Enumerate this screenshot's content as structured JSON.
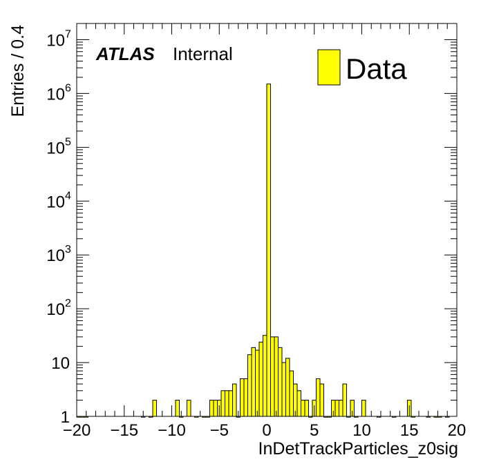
{
  "chart_data": {
    "type": "bar",
    "title": "",
    "xlabel": "InDetTrackParticles_z0sig",
    "ylabel": "Entries / 0.4",
    "xlim": [
      -20,
      20
    ],
    "ylim": [
      1,
      20000000
    ],
    "log_y": true,
    "bin_width": 0.4,
    "x_ticks": [
      "−20",
      "−15",
      "−10",
      "−5",
      "0",
      "5",
      "10",
      "15",
      "20"
    ],
    "x_tick_values": [
      -20,
      -15,
      -10,
      -5,
      0,
      5,
      10,
      15,
      20
    ],
    "y_ticks": [
      {
        "value": 1,
        "base": "1",
        "exp": ""
      },
      {
        "value": 10,
        "base": "10",
        "exp": ""
      },
      {
        "value": 100,
        "base": "10",
        "exp": "2"
      },
      {
        "value": 1000,
        "base": "10",
        "exp": "3"
      },
      {
        "value": 10000,
        "base": "10",
        "exp": "4"
      },
      {
        "value": 100000,
        "base": "10",
        "exp": "5"
      },
      {
        "value": 1000000,
        "base": "10",
        "exp": "6"
      },
      {
        "value": 10000000,
        "base": "10",
        "exp": "7"
      }
    ],
    "legend": {
      "position": "top-right",
      "entries": [
        {
          "label": "Data",
          "color": "#ffff00"
        }
      ]
    },
    "series": [
      {
        "color": "#ffff00",
        "bins": [
          {
            "x": -20.0,
            "y": 1
          },
          {
            "x": -19.6,
            "y": 1
          },
          {
            "x": -19.2,
            "y": 1
          },
          {
            "x": -13.2,
            "y": 1
          },
          {
            "x": -12.4,
            "y": 1
          },
          {
            "x": -12.0,
            "y": 2
          },
          {
            "x": -9.6,
            "y": 2
          },
          {
            "x": -9.2,
            "y": 1
          },
          {
            "x": -8.4,
            "y": 2
          },
          {
            "x": -7.6,
            "y": 1
          },
          {
            "x": -6.8,
            "y": 1
          },
          {
            "x": -6.4,
            "y": 1
          },
          {
            "x": -6.0,
            "y": 2
          },
          {
            "x": -5.6,
            "y": 2
          },
          {
            "x": -5.2,
            "y": 2
          },
          {
            "x": -4.8,
            "y": 3
          },
          {
            "x": -4.4,
            "y": 3
          },
          {
            "x": -4.0,
            "y": 3
          },
          {
            "x": -3.6,
            "y": 4
          },
          {
            "x": -3.2,
            "y": 1
          },
          {
            "x": -2.8,
            "y": 5
          },
          {
            "x": -2.4,
            "y": 5
          },
          {
            "x": -2.0,
            "y": 14
          },
          {
            "x": -1.6,
            "y": 19
          },
          {
            "x": -1.2,
            "y": 17
          },
          {
            "x": -0.8,
            "y": 24
          },
          {
            "x": -0.4,
            "y": 32
          },
          {
            "x": 0.0,
            "y": 1500000
          },
          {
            "x": 0.4,
            "y": 30
          },
          {
            "x": 0.8,
            "y": 30
          },
          {
            "x": 1.2,
            "y": 19
          },
          {
            "x": 1.6,
            "y": 10
          },
          {
            "x": 2.0,
            "y": 12
          },
          {
            "x": 2.4,
            "y": 7
          },
          {
            "x": 2.8,
            "y": 4
          },
          {
            "x": 3.2,
            "y": 3
          },
          {
            "x": 3.6,
            "y": 2
          },
          {
            "x": 4.0,
            "y": 2
          },
          {
            "x": 4.4,
            "y": 1
          },
          {
            "x": 4.8,
            "y": 2
          },
          {
            "x": 5.2,
            "y": 5
          },
          {
            "x": 5.6,
            "y": 4
          },
          {
            "x": 6.0,
            "y": 1
          },
          {
            "x": 6.4,
            "y": 1
          },
          {
            "x": 6.8,
            "y": 2
          },
          {
            "x": 7.2,
            "y": 2
          },
          {
            "x": 7.6,
            "y": 2
          },
          {
            "x": 8.0,
            "y": 4
          },
          {
            "x": 8.4,
            "y": 1
          },
          {
            "x": 8.8,
            "y": 2
          },
          {
            "x": 9.2,
            "y": 1
          },
          {
            "x": 10.0,
            "y": 2
          },
          {
            "x": 11.6,
            "y": 1
          },
          {
            "x": 13.2,
            "y": 1
          },
          {
            "x": 14.8,
            "y": 2
          },
          {
            "x": 15.2,
            "y": 1
          },
          {
            "x": 16.8,
            "y": 1
          },
          {
            "x": 17.6,
            "y": 1
          },
          {
            "x": 18.0,
            "y": 1
          },
          {
            "x": 18.8,
            "y": 1
          }
        ]
      }
    ]
  },
  "annotations": {
    "experiment": "ATLAS",
    "status": "Internal"
  }
}
